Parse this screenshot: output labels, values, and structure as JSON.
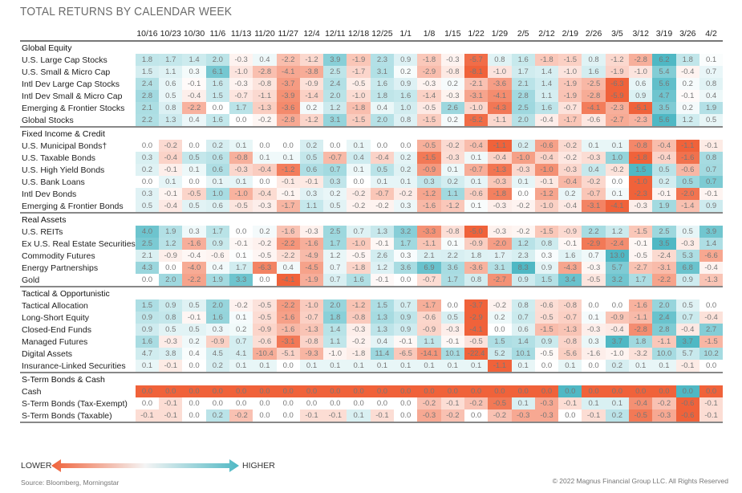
{
  "chart_data": {
    "type": "heatmap",
    "title": "TOTAL RETURNS BY CALENDAR WEEK",
    "x": [
      "10/16",
      "10/23",
      "10/30",
      "11/6",
      "11/13",
      "11/20",
      "11/27",
      "12/4",
      "12/11",
      "12/18",
      "12/25",
      "1/1",
      "1/8",
      "1/15",
      "1/22",
      "1/29",
      "2/5",
      "2/12",
      "2/19",
      "2/26",
      "3/5",
      "3/12",
      "3/19",
      "3/26",
      "4/2"
    ],
    "groups": [
      {
        "name": "Global Equity",
        "rows": [
          {
            "label": "U.S. Large Cap Stocks",
            "values": [
              1.8,
              1.7,
              1.4,
              2.0,
              -0.3,
              0.4,
              -2.2,
              -1.2,
              3.9,
              -1.9,
              2.3,
              0.9,
              -1.8,
              -0.3,
              -5.7,
              0.8,
              1.6,
              -1.8,
              -1.5,
              0.8,
              -1.2,
              -2.8,
              6.2,
              1.8,
              0.1
            ]
          },
          {
            "label": "U.S. Small & Micro Cap",
            "values": [
              1.5,
              1.1,
              0.3,
              6.1,
              -1.0,
              -2.8,
              -4.1,
              -3.8,
              2.5,
              -1.7,
              3.1,
              0.2,
              -2.9,
              -0.8,
              -8.1,
              -1.0,
              1.7,
              1.4,
              -1.0,
              1.6,
              -1.9,
              -1.0,
              5.4,
              -0.4,
              0.7
            ]
          },
          {
            "label": "Intl Dev Large Cap Stocks",
            "values": [
              2.4,
              0.6,
              -0.1,
              1.6,
              -0.3,
              -0.8,
              -3.7,
              -0.9,
              2.4,
              -0.5,
              1.6,
              0.9,
              -0.3,
              0.2,
              -2.1,
              -3.6,
              2.1,
              1.4,
              -1.9,
              -2.5,
              -6.3,
              0.6,
              5.6,
              0.2,
              0.8
            ]
          },
          {
            "label": "Intl Dev Small & Micro Cap",
            "values": [
              2.8,
              0.5,
              -0.4,
              1.5,
              -0.7,
              -1.1,
              -3.9,
              -1.4,
              2.0,
              -1.0,
              1.8,
              1.6,
              -1.4,
              -0.3,
              -3.1,
              -4.1,
              2.8,
              1.1,
              -1.9,
              -2.8,
              -5.9,
              0.9,
              4.7,
              -0.1,
              0.4
            ]
          },
          {
            "label": "Emerging & Frontier Stocks",
            "values": [
              2.1,
              0.8,
              -2.2,
              0.0,
              1.7,
              -1.3,
              -3.6,
              0.2,
              1.2,
              -1.8,
              0.4,
              1.0,
              -0.5,
              2.6,
              -1.0,
              -4.3,
              2.5,
              1.6,
              -0.7,
              -4.1,
              -2.3,
              -5.1,
              3.5,
              0.2,
              1.9
            ]
          },
          {
            "label": "Global Stocks",
            "values": [
              2.2,
              1.3,
              0.4,
              1.6,
              0.0,
              -0.2,
              -2.8,
              -1.2,
              3.1,
              -1.5,
              2.0,
              0.8,
              -1.5,
              0.2,
              -5.2,
              -1.1,
              2.0,
              -0.4,
              -1.7,
              -0.6,
              -2.7,
              -2.3,
              5.6,
              1.2,
              0.5
            ]
          }
        ]
      },
      {
        "name": "Fixed Income & Credit",
        "rows": [
          {
            "label": "U.S. Municipal Bonds†",
            "values": [
              0.0,
              -0.2,
              0.0,
              0.2,
              0.1,
              0.0,
              0.0,
              0.2,
              0.0,
              0.1,
              0.0,
              0.0,
              -0.5,
              -0.2,
              -0.4,
              -1.1,
              0.2,
              -0.6,
              -0.2,
              0.1,
              0.1,
              -0.8,
              -0.4,
              -1.1,
              -0.1
            ]
          },
          {
            "label": "U.S. Taxable Bonds",
            "values": [
              0.3,
              -0.4,
              0.5,
              0.6,
              -0.8,
              0.1,
              0.1,
              0.5,
              -0.7,
              0.4,
              -0.4,
              0.2,
              -1.5,
              -0.3,
              0.1,
              -0.4,
              -1.0,
              -0.4,
              -0.2,
              -0.3,
              1.0,
              -1.8,
              -0.4,
              -1.6,
              0.8
            ]
          },
          {
            "label": "U.S. High Yield Bonds",
            "values": [
              0.2,
              -0.1,
              0.1,
              0.6,
              -0.3,
              -0.4,
              -1.2,
              0.6,
              0.7,
              0.1,
              0.5,
              0.2,
              -0.9,
              0.1,
              -0.7,
              -1.3,
              -0.3,
              -1.0,
              -0.3,
              0.4,
              -0.2,
              1.5,
              0.5,
              -0.6,
              0.7
            ]
          },
          {
            "label": "U.S. Bank Loans",
            "values": [
              0.0,
              0.1,
              0.0,
              0.1,
              0.1,
              0.0,
              -0.1,
              -0.1,
              0.3,
              0.0,
              0.1,
              0.1,
              0.3,
              0.2,
              0.1,
              -0.3,
              0.1,
              -0.1,
              -0.4,
              -0.2,
              0.0,
              -1.0,
              0.2,
              0.5,
              0.7
            ]
          },
          {
            "label": "Intl Dev Bonds",
            "values": [
              0.3,
              -0.1,
              -0.5,
              1.0,
              -1.0,
              -0.4,
              -0.1,
              0.3,
              0.2,
              -0.2,
              -0.7,
              -0.2,
              -1.2,
              1.1,
              -0.6,
              -1.8,
              0.0,
              -1.2,
              0.2,
              -0.7,
              0.1,
              -2.3,
              -0.1,
              -2.0,
              -0.1
            ]
          },
          {
            "label": "Emerging & Frontier Bonds",
            "values": [
              0.5,
              -0.4,
              0.5,
              0.6,
              -0.5,
              -0.3,
              -1.7,
              1.1,
              0.5,
              -0.2,
              -0.2,
              0.3,
              -1.6,
              -1.2,
              0.1,
              -0.3,
              -0.2,
              -1.0,
              -0.4,
              -3.1,
              -4.1,
              -0.3,
              1.9,
              -1.4,
              0.9
            ]
          }
        ]
      },
      {
        "name": "Real Assets",
        "rows": [
          {
            "label": "U.S. REITs",
            "values": [
              4.0,
              1.9,
              0.3,
              1.7,
              0.0,
              0.2,
              -1.6,
              -0.3,
              2.5,
              0.7,
              1.3,
              3.2,
              -3.3,
              -0.8,
              -5.0,
              -0.3,
              -0.2,
              -1.5,
              -0.9,
              2.2,
              1.2,
              -1.5,
              2.5,
              0.5,
              3.9
            ]
          },
          {
            "label": "Ex U.S. Real Estate Securities",
            "values": [
              2.5,
              1.2,
              -1.6,
              0.9,
              -0.1,
              -0.2,
              -2.2,
              -1.6,
              1.7,
              -1.0,
              -0.1,
              1.7,
              -1.1,
              0.1,
              -0.9,
              -2.0,
              1.2,
              0.8,
              -0.1,
              -2.9,
              -2.4,
              -0.1,
              3.5,
              -0.3,
              1.4
            ]
          },
          {
            "label": "Commodity Futures",
            "values": [
              2.1,
              -0.9,
              -0.4,
              -0.6,
              0.1,
              -0.5,
              -2.2,
              -4.9,
              1.2,
              -0.5,
              2.6,
              0.3,
              2.1,
              2.2,
              1.8,
              1.7,
              2.3,
              0.3,
              1.6,
              0.7,
              13.0,
              -0.5,
              -2.4,
              5.3,
              -6.6
            ]
          },
          {
            "label": "Energy Partnerships",
            "values": [
              4.3,
              0.0,
              -4.0,
              0.4,
              1.7,
              -6.3,
              0.4,
              -4.5,
              0.7,
              -1.8,
              1.2,
              3.6,
              6.9,
              3.6,
              -3.6,
              3.1,
              8.3,
              0.9,
              -4.3,
              -0.3,
              5.7,
              -2.7,
              -3.1,
              6.8,
              -0.4
            ]
          },
          {
            "label": "Gold",
            "values": [
              0.0,
              2.0,
              -2.2,
              1.9,
              3.3,
              0.0,
              -4.1,
              -1.9,
              0.7,
              1.6,
              -0.1,
              0.0,
              -0.7,
              1.7,
              0.8,
              -2.7,
              0.9,
              1.5,
              3.4,
              -0.5,
              3.2,
              1.7,
              -2.2,
              0.9,
              -1.3
            ]
          }
        ]
      },
      {
        "name": "Tactical & Opportunistic",
        "rows": [
          {
            "label": "Tactical Allocation",
            "values": [
              1.5,
              0.9,
              0.5,
              2.0,
              -0.2,
              -0.5,
              -2.2,
              -1.0,
              2.0,
              -1.2,
              1.5,
              0.7,
              -1.7,
              0.0,
              -3.7,
              -0.2,
              0.8,
              -0.6,
              -0.8,
              0.0,
              0.0,
              -1.6,
              2.0,
              0.5,
              0.0
            ]
          },
          {
            "label": "Long-Short Equity",
            "values": [
              0.9,
              0.8,
              -0.1,
              1.6,
              0.1,
              -0.5,
              -1.6,
              -0.7,
              1.8,
              -0.8,
              1.3,
              0.9,
              -0.6,
              0.5,
              -2.9,
              0.2,
              0.7,
              -0.5,
              -0.7,
              0.1,
              -0.9,
              -1.1,
              2.4,
              0.7,
              -0.4
            ]
          },
          {
            "label": "Closed-End Funds",
            "values": [
              0.9,
              0.5,
              0.5,
              0.3,
              0.2,
              -0.9,
              -1.6,
              -1.3,
              1.4,
              -0.3,
              1.3,
              0.9,
              -0.9,
              -0.3,
              -4.1,
              0.0,
              0.6,
              -1.5,
              -1.3,
              -0.3,
              -0.4,
              -2.8,
              2.8,
              -0.4,
              2.7
            ]
          },
          {
            "label": "Managed Futures",
            "values": [
              1.6,
              -0.3,
              0.2,
              -0.9,
              0.7,
              -0.6,
              -3.1,
              -0.8,
              1.1,
              -0.2,
              0.4,
              -0.1,
              1.1,
              -0.1,
              -0.5,
              1.5,
              1.4,
              0.9,
              -0.8,
              0.3,
              3.7,
              1.8,
              -1.1,
              3.7,
              -1.5
            ]
          },
          {
            "label": "Digital Assets",
            "values": [
              4.7,
              3.8,
              0.4,
              4.5,
              4.1,
              -10.4,
              -5.1,
              -9.3,
              -1.0,
              -1.8,
              11.4,
              -6.5,
              -14.1,
              10.1,
              -22.4,
              5.2,
              10.1,
              -0.5,
              -5.6,
              -1.6,
              -1.0,
              -3.2,
              10.0,
              5.7,
              10.2
            ]
          },
          {
            "label": "Insurance-Linked Securities",
            "values": [
              0.1,
              -0.1,
              0.0,
              0.2,
              0.1,
              0.1,
              0.0,
              0.1,
              0.1,
              0.1,
              0.1,
              0.1,
              0.1,
              0.1,
              0.1,
              -1.1,
              0.1,
              0.0,
              0.1,
              0.0,
              0.2,
              0.1,
              0.1,
              -0.1,
              0.0
            ]
          }
        ]
      },
      {
        "name": "S-Term Bonds & Cash",
        "rows": [
          {
            "label": "Cash",
            "values": [
              0.0,
              0.0,
              0.0,
              0.0,
              0.0,
              0.0,
              0.0,
              0.0,
              0.0,
              0.0,
              0.0,
              0.0,
              0.0,
              0.0,
              0.0,
              0.0,
              0.0,
              0.0,
              0.0,
              0.0,
              0.0,
              0.0,
              0.0,
              0.0,
              0.0
            ]
          },
          {
            "label": "S-Term Bonds (Tax-Exempt)",
            "values": [
              0.0,
              -0.1,
              0.0,
              0.0,
              0.0,
              0.0,
              0.0,
              0.0,
              0.0,
              0.0,
              0.0,
              0.0,
              -0.2,
              -0.1,
              -0.2,
              -0.5,
              0.1,
              -0.3,
              -0.1,
              0.1,
              0.1,
              -0.4,
              -0.2,
              -0.6,
              -0.1
            ]
          },
          {
            "label": "S-Term Bonds (Taxable)",
            "values": [
              -0.1,
              -0.1,
              0.0,
              0.2,
              -0.2,
              0.0,
              0.0,
              -0.1,
              -0.1,
              0.1,
              -0.1,
              0.0,
              -0.3,
              -0.2,
              0.0,
              -0.2,
              -0.3,
              -0.3,
              0.0,
              -0.1,
              0.2,
              -0.5,
              -0.3,
              -0.6,
              -0.1
            ]
          }
        ]
      }
    ],
    "color_scale": {
      "low_label": "LOWER",
      "high_label": "HIGHER",
      "low_color": "#f0623a",
      "mid_color": "#ffffff",
      "high_color": "#4fb8c4"
    },
    "cash_row_colors": [
      "low",
      "low",
      "low",
      "low",
      "low",
      "low",
      "low",
      "low",
      "low",
      "low",
      "low",
      "low",
      "low",
      "low",
      "low",
      "low",
      "low",
      "low",
      "high",
      "low",
      "low",
      "low",
      "low",
      "high",
      "low"
    ],
    "legend": "bottom-left"
  },
  "footer": {
    "source": "Source: Bloomberg, Morningstar",
    "copyright": "© 2022 Magnus Financial Group LLC. All Rights Reserved"
  }
}
